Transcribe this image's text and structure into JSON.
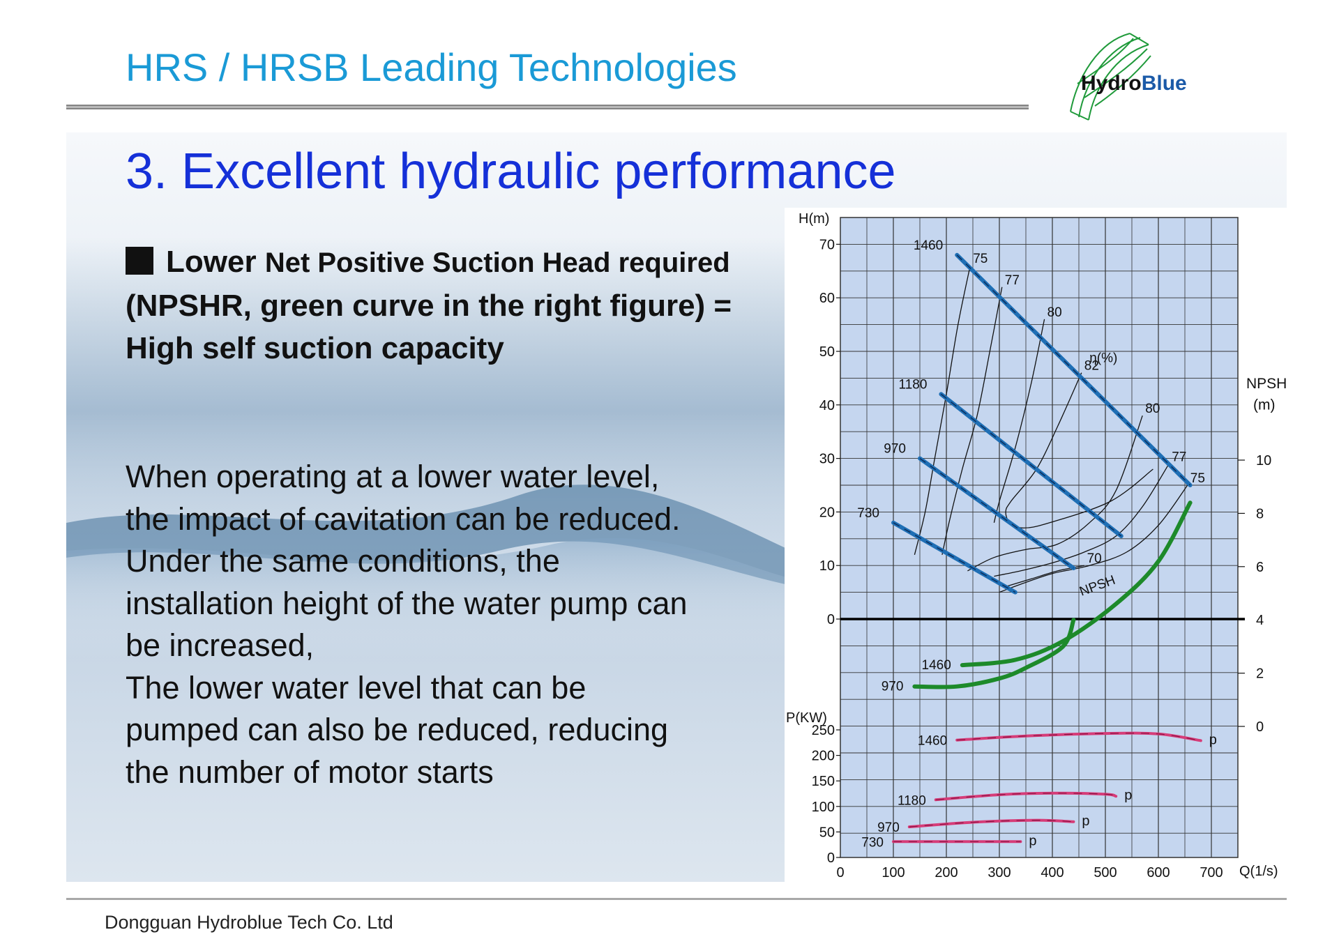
{
  "header": {
    "title": "HRS / HRSB Leading Technologies",
    "logo_text_dark": "Hydro",
    "logo_text_blue": "Blue"
  },
  "section": {
    "title": "3. Excellent hydraulic performance"
  },
  "bullet": {
    "part1": "Lower",
    "part2": "Net Positive Suction Head required",
    "part3": "(NPSHR, green curve in the right figure) = High self suction capacity"
  },
  "paragraph": [
    "When operating at a lower water level,",
    "the impact of cavitation can be reduced.",
    "Under the same conditions, the",
    "installation height of the water pump can",
    "be increased,",
    "The lower water level that can be",
    "pumped can also be reduced, reducing",
    "the number of motor starts"
  ],
  "footer": {
    "company": "Dongguan Hydroblue Tech Co. Ltd"
  },
  "colors": {
    "header_blue": "#1a9ad6",
    "title_blue": "#1530d8",
    "h_curve": "#1f6fb5",
    "npsh_curve": "#1d8a2a",
    "power_curve": "#d63c78",
    "grid_bg": "#c5d6ef"
  },
  "chart_data": {
    "type": "line",
    "xlabel": "Q(1/s)",
    "ylabel_head": "H(m)",
    "ylabel_power": "P(KW)",
    "ylabel_npsh": "NPSH\n(m)",
    "x_ticks": [
      "0",
      "100",
      "200",
      "300",
      "400",
      "500",
      "600",
      "700"
    ],
    "head_ticks": [
      "0",
      "10",
      "20",
      "30",
      "40",
      "50",
      "60",
      "70"
    ],
    "power_ticks": [
      "0",
      "50",
      "100",
      "150",
      "200",
      "250"
    ],
    "npsh_ticks": [
      "0",
      "2",
      "4",
      "6",
      "8",
      "10"
    ],
    "xlim": [
      0,
      750
    ],
    "head_ylim": [
      0,
      75
    ],
    "power_ylim": [
      0,
      265
    ],
    "npsh_ylim": [
      0,
      11
    ],
    "grid": true,
    "head_curves": [
      {
        "name": "1460",
        "x": [
          220,
          660
        ],
        "y": [
          68,
          25
        ]
      },
      {
        "name": "1180",
        "x": [
          190,
          530
        ],
        "y": [
          42,
          15.5
        ]
      },
      {
        "name": "970",
        "x": [
          150,
          440
        ],
        "y": [
          30,
          9.5
        ]
      },
      {
        "name": "730",
        "x": [
          100,
          330
        ],
        "y": [
          18,
          5
        ]
      }
    ],
    "efficiency_label": "η(%)",
    "efficiency_contours": [
      {
        "name": "75",
        "x": [
          245,
          222,
          200,
          178,
          160,
          140
        ],
        "y": [
          66,
          55,
          42,
          30,
          20,
          12
        ]
      },
      {
        "name": "77",
        "x": [
          305,
          282,
          258,
          230,
          205,
          192
        ],
        "y": [
          62,
          50,
          38,
          28,
          18,
          12
        ]
      },
      {
        "name": "80",
        "x": [
          385,
          360,
          330,
          300,
          290
        ],
        "y": [
          56,
          44,
          32,
          22,
          18
        ]
      },
      {
        "name": "82",
        "x": [
          455,
          410,
          370,
          322,
          312,
          320,
          345,
          395,
          510,
          590
        ],
        "y": [
          46,
          36,
          28,
          22,
          20,
          18,
          17,
          18,
          22,
          28
        ]
      },
      {
        "name": "80",
        "x": [
          570,
          520,
          470,
          410,
          350,
          290,
          240
        ],
        "y": [
          38,
          24,
          18,
          14,
          13,
          11.5,
          9
        ]
      },
      {
        "name": "77",
        "x": [
          620,
          570,
          520,
          460,
          400,
          340,
          290
        ],
        "y": [
          29,
          21,
          15.5,
          12.5,
          10.5,
          9,
          8
        ]
      },
      {
        "name": "75",
        "x": [
          655,
          600,
          540,
          470,
          400,
          340,
          300
        ],
        "y": [
          25,
          17.5,
          12.5,
          10,
          8.5,
          6.5,
          5
        ]
      },
      {
        "name": "70",
        "x": [
          460,
          410,
          360,
          310
        ],
        "y": [
          10,
          9,
          7.5,
          6
        ]
      }
    ],
    "npsh_label": "NPSH",
    "npsh_curves": [
      {
        "name": "970",
        "x": [
          140,
          220,
          300,
          350,
          420,
          440
        ],
        "y": [
          1.5,
          1.5,
          1.8,
          2.2,
          3,
          4
        ]
      },
      {
        "name": "1460",
        "x": [
          230,
          330,
          420,
          520,
          600,
          660
        ],
        "y": [
          2.3,
          2.5,
          3.2,
          4.6,
          6.2,
          8.4
        ]
      }
    ],
    "power_curves": [
      {
        "name": "1460",
        "label": "p",
        "x": [
          220,
          350,
          500,
          600,
          680
        ],
        "y": [
          230,
          238,
          243,
          242,
          229
        ]
      },
      {
        "name": "1180",
        "label": "p",
        "x": [
          180,
          300,
          400,
          500,
          520
        ],
        "y": [
          113,
          123,
          126,
          124,
          120
        ]
      },
      {
        "name": "970",
        "label": "p",
        "x": [
          130,
          250,
          370,
          440
        ],
        "y": [
          60,
          69,
          73,
          70
        ]
      },
      {
        "name": "730",
        "label": "p",
        "x": [
          100,
          200,
          300,
          340
        ],
        "y": [
          31,
          31,
          31,
          31
        ]
      }
    ]
  }
}
